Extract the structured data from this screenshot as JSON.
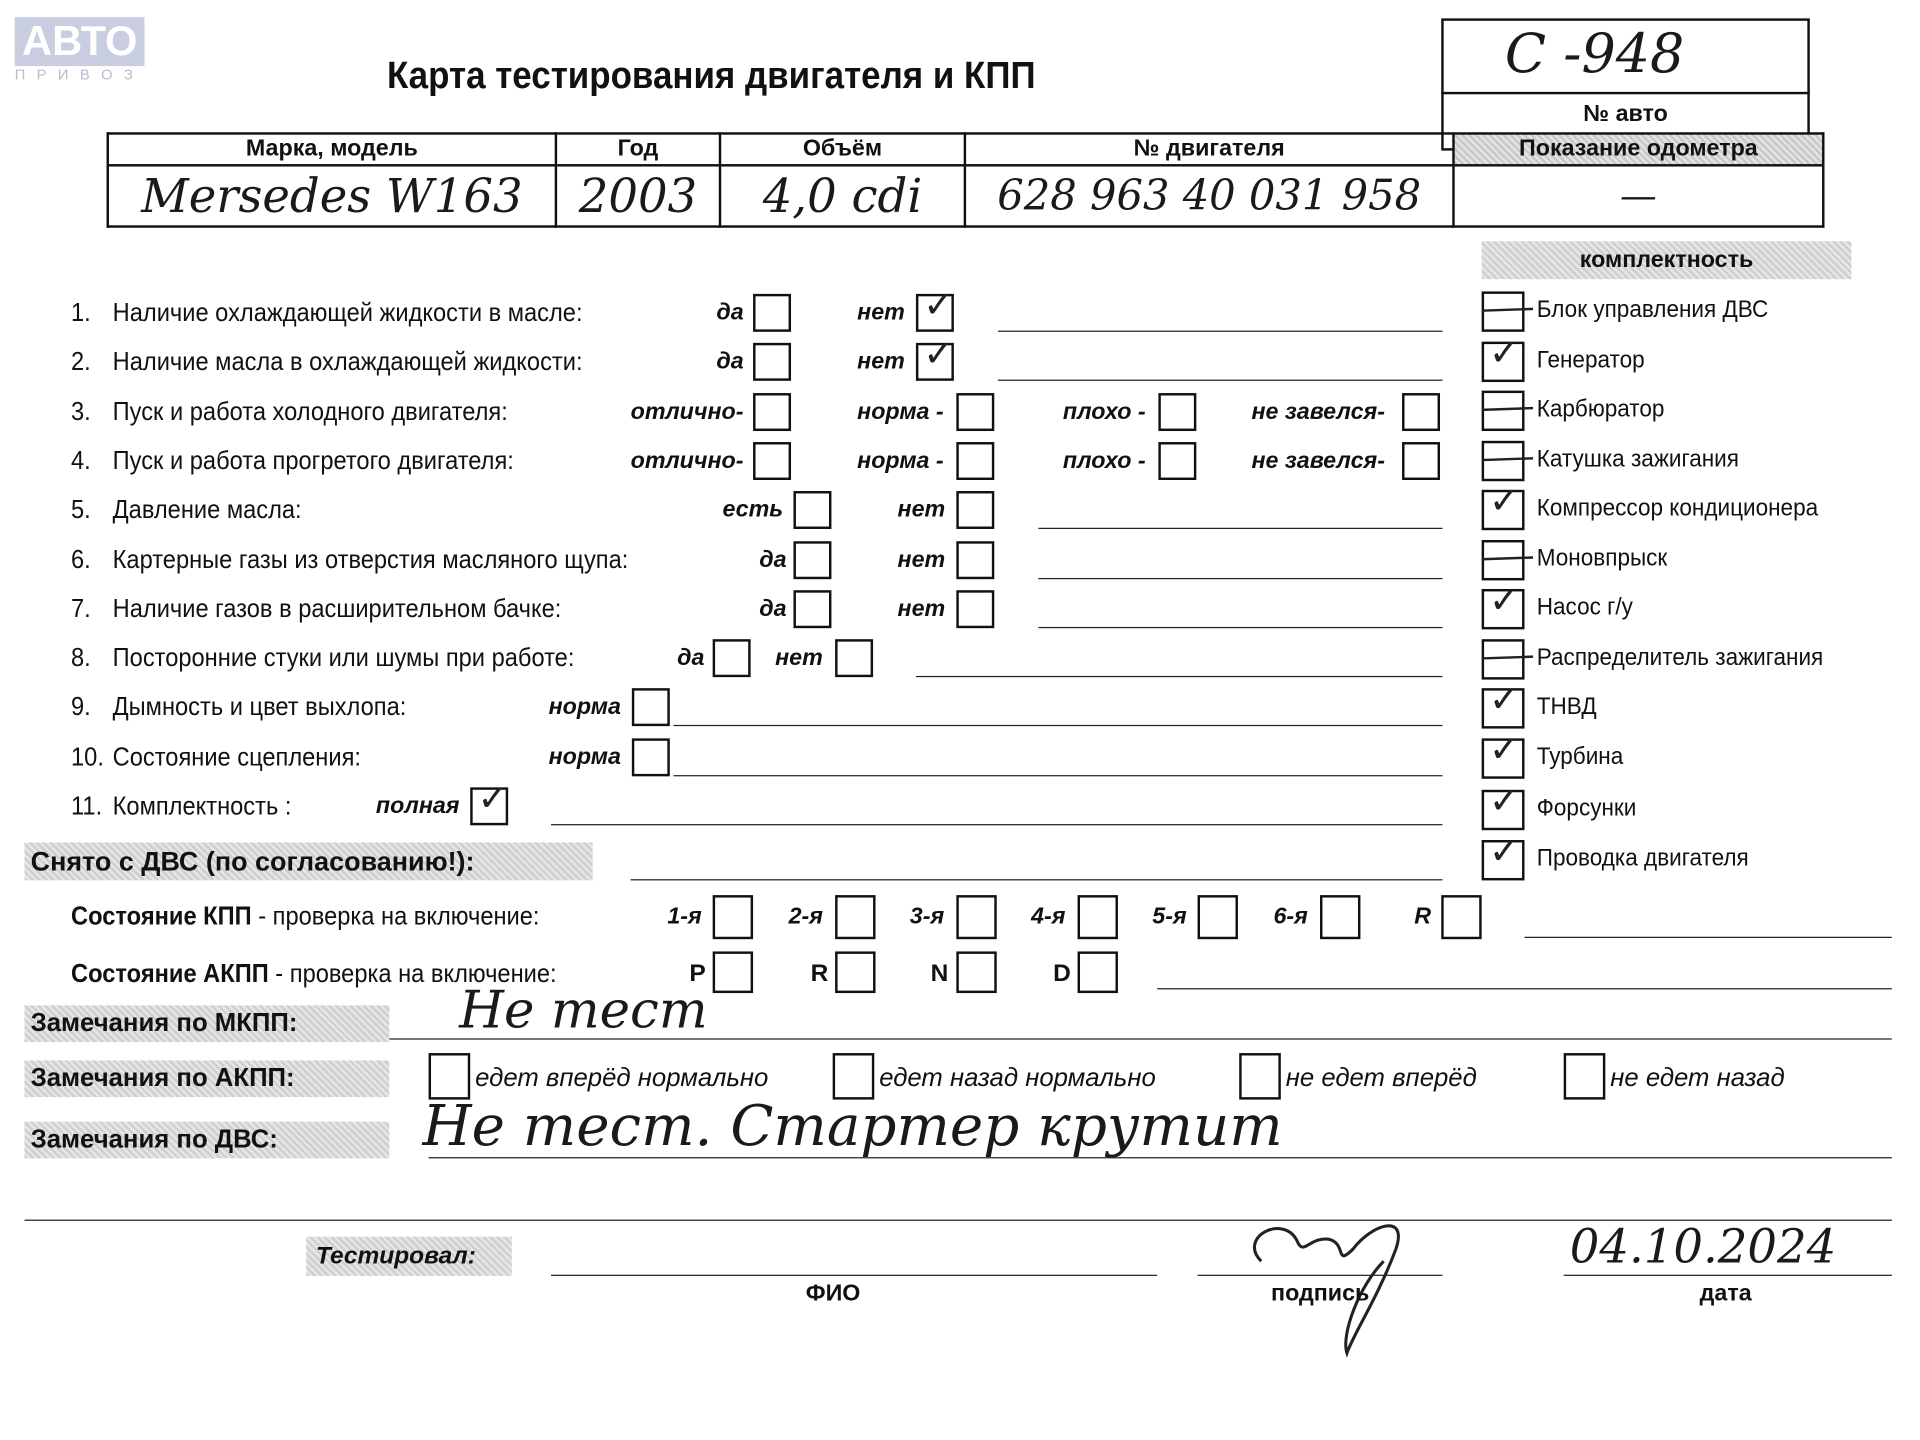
{
  "logo": {
    "main": "АВТО",
    "sub": "П Р И В О З"
  },
  "title": "Карта тестирования двигателя  и КПП",
  "car_no": {
    "value": "С -948",
    "label": "№ авто"
  },
  "odometer": {
    "label": "Показание одометра",
    "value": "—"
  },
  "vehicle_table": {
    "headers": [
      "Марка, модель",
      "Год",
      "Объём",
      "№ двигателя"
    ],
    "values": [
      "Mersedes  W163",
      "2003",
      "4,0 cdi",
      "628 963 40 031 958"
    ]
  },
  "questions": [
    {
      "num": "1.",
      "text": "Наличие охлаждающей жидкости в масле:",
      "options": [
        {
          "label": "да",
          "checked": false
        },
        {
          "label": "нет",
          "checked": true
        }
      ]
    },
    {
      "num": "2.",
      "text": "Наличие масла в охлаждающей жидкости:",
      "options": [
        {
          "label": "да",
          "checked": false
        },
        {
          "label": "нет",
          "checked": true
        }
      ]
    },
    {
      "num": "3.",
      "text": "Пуск и работа холодного двигателя:",
      "options": [
        {
          "label": "отлично-",
          "checked": false
        },
        {
          "label": "норма -",
          "checked": false
        },
        {
          "label": "плохо -",
          "checked": false
        },
        {
          "label": "не завелся-",
          "checked": false
        }
      ]
    },
    {
      "num": "4.",
      "text": "Пуск и работа прогретого двигателя:",
      "options": [
        {
          "label": "отлично-",
          "checked": false
        },
        {
          "label": "норма -",
          "checked": false
        },
        {
          "label": "плохо -",
          "checked": false
        },
        {
          "label": "не завелся-",
          "checked": false
        }
      ]
    },
    {
      "num": "5.",
      "text": "Давление масла:",
      "options": [
        {
          "label": "есть",
          "checked": false
        },
        {
          "label": "нет",
          "checked": false
        }
      ]
    },
    {
      "num": "6.",
      "text": "Картерные газы из отверстия масляного щупа:",
      "options": [
        {
          "label": "да",
          "checked": false
        },
        {
          "label": "нет",
          "checked": false
        }
      ]
    },
    {
      "num": "7.",
      "text": "Наличие газов в расширительном бачке:",
      "options": [
        {
          "label": "да",
          "checked": false
        },
        {
          "label": "нет",
          "checked": false
        }
      ]
    },
    {
      "num": "8.",
      "text": "Посторонние стуки или шумы при работе:",
      "options": [
        {
          "label": "да",
          "checked": false
        },
        {
          "label": "нет",
          "checked": false
        }
      ]
    },
    {
      "num": "9.",
      "text": "Дымность и цвет выхлопа:",
      "options": [
        {
          "label": "норма",
          "checked": false
        }
      ]
    },
    {
      "num": "10.",
      "text": "Состояние сцепления:",
      "options": [
        {
          "label": "норма",
          "checked": false
        }
      ]
    },
    {
      "num": "11.",
      "text": "Комплектность :",
      "options": [
        {
          "label": "полная",
          "checked": true
        }
      ]
    }
  ],
  "kit": {
    "title": "комплектность",
    "items": [
      {
        "label": "Блок управления ДВС",
        "state": "dash"
      },
      {
        "label": "Генератор",
        "state": "checked"
      },
      {
        "label": "Карбюратор",
        "state": "dash"
      },
      {
        "label": "Катушка зажигания",
        "state": "dash"
      },
      {
        "label": "Компрессор кондиционера",
        "state": "checked"
      },
      {
        "label": "Моновпрыск",
        "state": "dash"
      },
      {
        "label": "Насос г/у",
        "state": "checked"
      },
      {
        "label": "Распределитель зажигания",
        "state": "dash"
      },
      {
        "label": "ТНВД",
        "state": "checked"
      },
      {
        "label": "Турбина",
        "state": "checked"
      },
      {
        "label": "Форсунки",
        "state": "checked"
      },
      {
        "label": "Проводка двигателя",
        "state": "checked"
      }
    ]
  },
  "removed_label": "Снято с ДВС (по согласованию!):",
  "manual_gearbox": {
    "label_bold": "Состояние КПП",
    "label_rest": " - проверка на включение:",
    "gears": [
      "1-я",
      "2-я",
      "3-я",
      "4-я",
      "5-я",
      "6-я",
      "R"
    ]
  },
  "auto_gearbox": {
    "label_bold": "Состояние АКПП",
    "label_rest": " - проверка на включение:",
    "modes": [
      "P",
      "R",
      "N",
      "D"
    ]
  },
  "remarks": {
    "manual_label": "Замечания по МКПП:",
    "manual_value": "Не тест",
    "auto_label": "Замечания по АКПП:",
    "auto_options": [
      "едет вперёд нормально",
      "едет назад нормально",
      "не едет вперёд",
      "не едет назад"
    ],
    "engine_label": "Замечания по ДВС:",
    "engine_value": "Не тест. Стартер крутит"
  },
  "footer": {
    "tested_label": "Тестировал:",
    "name_caption": "ФИО",
    "signature_caption": "подпись",
    "date_caption": "дата",
    "date_value": "04.10.2024"
  }
}
